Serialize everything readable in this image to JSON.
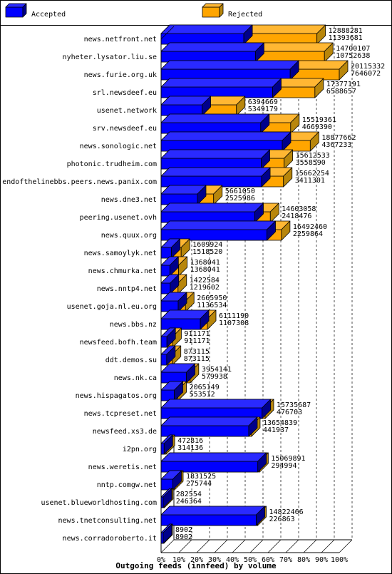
{
  "chart_data": {
    "type": "bar",
    "orientation": "horizontal",
    "stacking": "overlay",
    "title": "Outgoing feeds (innfeed) by volume",
    "legend_position": "top",
    "xlim": [
      0,
      100
    ],
    "x_unit": "%",
    "x_ticks": [
      "0%",
      "10%",
      "20%",
      "30%",
      "40%",
      "50%",
      "60%",
      "70%",
      "80%",
      "90%",
      "100%"
    ],
    "grid": true,
    "colors": {
      "accepted": "#0000ff",
      "rejected": "#ffa500"
    },
    "categories": [
      "news.netfront.net",
      "nyheter.lysator.liu.se",
      "news.furie.org.uk",
      "srl.newsdeef.eu",
      "usenet.network",
      "srv.newsdeef.eu",
      "news.sonologic.net",
      "photonic.trudheim.com",
      "endofthelinebbs.peers.news.panix.com",
      "news.dne3.net",
      "peering.usenet.ovh",
      "news.quux.org",
      "news.samoylyk.net",
      "news.chmurka.net",
      "news.nntp4.net",
      "usenet.goja.nl.eu.org",
      "news.bbs.nz",
      "newsfeed.bofh.team",
      "ddt.demos.su",
      "news.nk.ca",
      "news.hispagatos.org",
      "news.tcpreset.net",
      "newsfeed.xs3.de",
      "i2pn.org",
      "news.weretis.net",
      "nntp.comgw.net",
      "usenet.blueworldhosting.com",
      "news.tnetconsulting.net",
      "news.corradoroberto.it"
    ],
    "series": [
      {
        "name": "Accepted",
        "values": [
          12888281,
          14700107,
          20115332,
          17377191,
          6394669,
          15519361,
          18877662,
          15612533,
          15662254,
          5661050,
          14603058,
          16492460,
          1609924,
          1368041,
          1422584,
          2665950,
          6111190,
          911171,
          873115,
          3954141,
          2065149,
          15735687,
          13654839,
          472816,
          15069891,
          1831525,
          282554,
          14822466,
          8902
        ]
      },
      {
        "name": "Rejected",
        "values": [
          11393681,
          10752638,
          7646072,
          6588657,
          5349179,
          4669390,
          4367233,
          3558590,
          3411301,
          2525986,
          2418476,
          2259864,
          1518520,
          1368041,
          1219602,
          1136534,
          1107308,
          911171,
          873115,
          579938,
          553512,
          476703,
          441937,
          314136,
          294994,
          275744,
          246364,
          226863,
          8902
        ]
      }
    ]
  }
}
